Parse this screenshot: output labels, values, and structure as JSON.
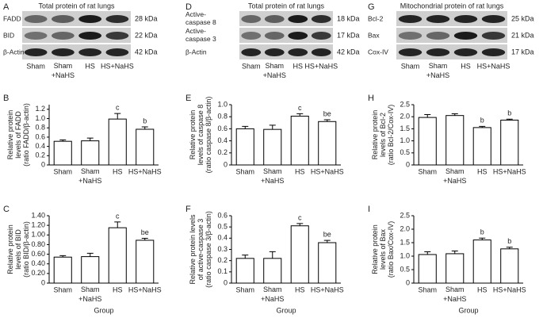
{
  "blot_panels": [
    {
      "panel": "A",
      "title": "Total protein of rat lungs",
      "rows": [
        "FADD",
        "BID",
        "β-Actin"
      ],
      "sizes": [
        "28 kDa",
        "22 kDa",
        "42 kDa"
      ],
      "lanes": [
        "Sham",
        "Sham\n+NaHS",
        "HS",
        "HS+NaHS"
      ]
    },
    {
      "panel": "D",
      "title": "Total protein of rat lungs",
      "rows": [
        "Active-\ncaspase 8",
        "Active-\ncaspase 3",
        "β-Actin"
      ],
      "sizes": [
        "18 kDa",
        "17 kDa",
        "42 kDa"
      ],
      "lanes": [
        "Sham",
        "Sham\n+NaHS",
        "HS",
        "HS+NaHS"
      ]
    },
    {
      "panel": "G",
      "title": "Mitochondrial protein of rat lungs",
      "rows": [
        "Bcl-2",
        "Bax",
        "Cox-IV"
      ],
      "sizes": [
        "25 kDa",
        "21 kDa",
        "17 kDa"
      ],
      "lanes": [
        "Sham",
        "Sham\n+NaHS",
        "HS",
        "HS+NaHS"
      ]
    }
  ],
  "chart_data": [
    {
      "type": "bar",
      "panel": "B",
      "y_label": "Relative protein\nlevels of FADD\n(ratio FADD/β-actin)",
      "categories": [
        "Sham",
        "Sham\n+NaHS",
        "HS",
        "HS+NaHS"
      ],
      "values": [
        0.51,
        0.52,
        0.99,
        0.77
      ],
      "errors": [
        0.03,
        0.06,
        0.12,
        0.05
      ],
      "annotations": [
        null,
        null,
        "c",
        "b"
      ],
      "color": "#ffffff",
      "ylim": [
        0,
        1.3
      ],
      "yticks": [
        0,
        0.2,
        0.4,
        0.6,
        0.8,
        {
          "value": 1,
          "label": "1.0"
        },
        1.2
      ]
    },
    {
      "type": "bar",
      "panel": "C",
      "y_label": "Relative protein\nlevels of BID\n(ratio BID/β-actin)",
      "x_label": "Group",
      "categories": [
        "Sham",
        "Sham\n+NaHS",
        "HS",
        "HS+NaHS"
      ],
      "values": [
        0.54,
        0.55,
        1.15,
        0.89
      ],
      "errors": [
        0.03,
        0.07,
        0.12,
        0.04
      ],
      "annotations": [
        null,
        null,
        "c",
        "be"
      ],
      "color": "#ffffff",
      "ylim": [
        0,
        1.4
      ],
      "yticks": [
        0,
        {
          "value": 0.2,
          "label": "0.20"
        },
        {
          "value": 0.4,
          "label": "0.40"
        },
        {
          "value": 0.6,
          "label": "0.60"
        },
        {
          "value": 0.8,
          "label": "0.80"
        },
        {
          "value": 1,
          "label": "1.00"
        },
        {
          "value": 1.2,
          "label": "1.20"
        },
        {
          "value": 1.4,
          "label": "1.40"
        }
      ]
    },
    {
      "type": "bar",
      "panel": "E",
      "y_label": "Relative protein\nlevels of caspase 8\n(ratio caspase 8/β-actin)",
      "categories": [
        "Sham",
        "Sham\n+NaHS",
        "HS",
        "HS+NaHS"
      ],
      "values": [
        0.6,
        0.59,
        0.81,
        0.72
      ],
      "errors": [
        0.04,
        0.07,
        0.04,
        0.03
      ],
      "annotations": [
        null,
        null,
        "c",
        "be"
      ],
      "color": "#ffffff",
      "ylim": [
        0,
        1.0
      ],
      "yticks": [
        0,
        0.2,
        0.4,
        0.6,
        0.8,
        {
          "value": 1,
          "label": "1.0"
        }
      ]
    },
    {
      "type": "bar",
      "panel": "F",
      "y_label": "Relative protein levels\nof active-caspase 3\n(ratio caspase 3/β-actin)",
      "x_label": "Group",
      "categories": [
        "Sham",
        "Sham\n+NaHS",
        "HS",
        "HS+NaHS"
      ],
      "values": [
        0.22,
        0.22,
        0.51,
        0.36
      ],
      "errors": [
        0.03,
        0.06,
        0.02,
        0.02
      ],
      "annotations": [
        null,
        null,
        "c",
        "be"
      ],
      "color": "#ffffff",
      "ylim": [
        0,
        0.6
      ],
      "yticks": [
        0,
        0.1,
        0.2,
        0.3,
        0.4,
        0.5,
        0.6
      ]
    },
    {
      "type": "bar",
      "panel": "H",
      "y_label": "Relative protein\nlevels of Bcl-2\n(ratio Bcl-2/Cox-IV)",
      "categories": [
        "Sham",
        "Sham\n+NaHS",
        "HS",
        "HS+NaHS"
      ],
      "values": [
        1.97,
        2.05,
        1.55,
        1.86
      ],
      "errors": [
        0.12,
        0.07,
        0.05,
        0.04
      ],
      "annotations": [
        null,
        null,
        "b",
        "b"
      ],
      "color": "#ffffff",
      "ylim": [
        0,
        2.5
      ],
      "yticks": [
        0,
        0.5,
        {
          "value": 1,
          "label": "1.0"
        },
        1.5,
        {
          "value": 2,
          "label": "2.0"
        },
        2.5
      ]
    },
    {
      "type": "bar",
      "panel": "I",
      "y_label": "Relative protein\nlevels of Bax\n(ratio Bax/Cox-IV)",
      "x_label": "Group",
      "categories": [
        "Sham",
        "Sham\n+NaHS",
        "HS",
        "HS+NaHS"
      ],
      "values": [
        1.06,
        1.09,
        1.6,
        1.27
      ],
      "errors": [
        0.1,
        0.1,
        0.07,
        0.06
      ],
      "annotations": [
        null,
        null,
        "b",
        "b"
      ],
      "color": "#ffffff",
      "ylim": [
        0,
        2.5
      ],
      "yticks": [
        0,
        0.5,
        {
          "value": 1,
          "label": "1.0"
        },
        1.5,
        {
          "value": 2,
          "label": "2.0"
        },
        2.5
      ]
    }
  ]
}
